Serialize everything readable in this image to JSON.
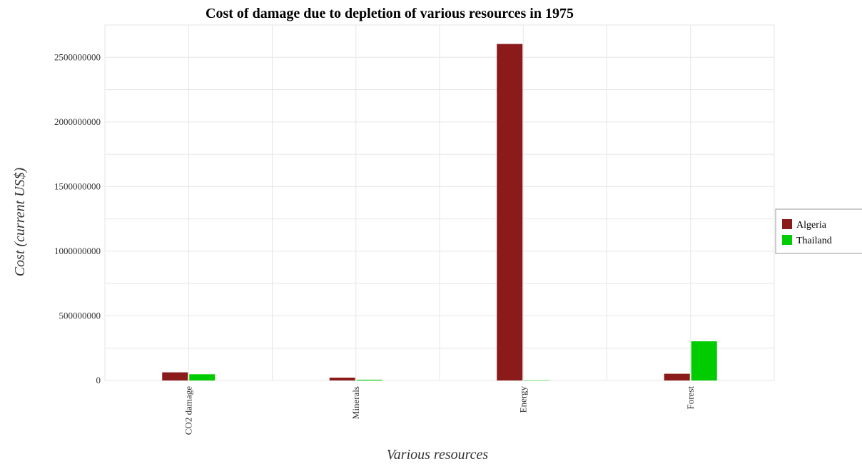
{
  "chart_data": {
    "type": "bar",
    "title": "Cost of damage due to depletion of various resources in 1975",
    "xlabel": "Various resources",
    "ylabel": "Cost (current US$)",
    "categories": [
      "CO2 damage",
      "Minerals",
      "Energy",
      "Forest"
    ],
    "series": [
      {
        "name": "Algeria",
        "color": "#8b1a1a",
        "values": [
          63000000,
          22000000,
          2603000000,
          52000000
        ]
      },
      {
        "name": "Thailand",
        "color": "#00cc00",
        "values": [
          48000000,
          6000000,
          1500000,
          303000000
        ]
      }
    ],
    "ylim": [
      0,
      2750000000
    ],
    "yticks": [
      0,
      500000000,
      1000000000,
      1500000000,
      2000000000,
      2500000000
    ],
    "ytick_labels": [
      "0",
      "500000000",
      "1000000000",
      "1500000000",
      "2000000000",
      "2500000000"
    ],
    "grid": true,
    "legend_position": "right"
  }
}
